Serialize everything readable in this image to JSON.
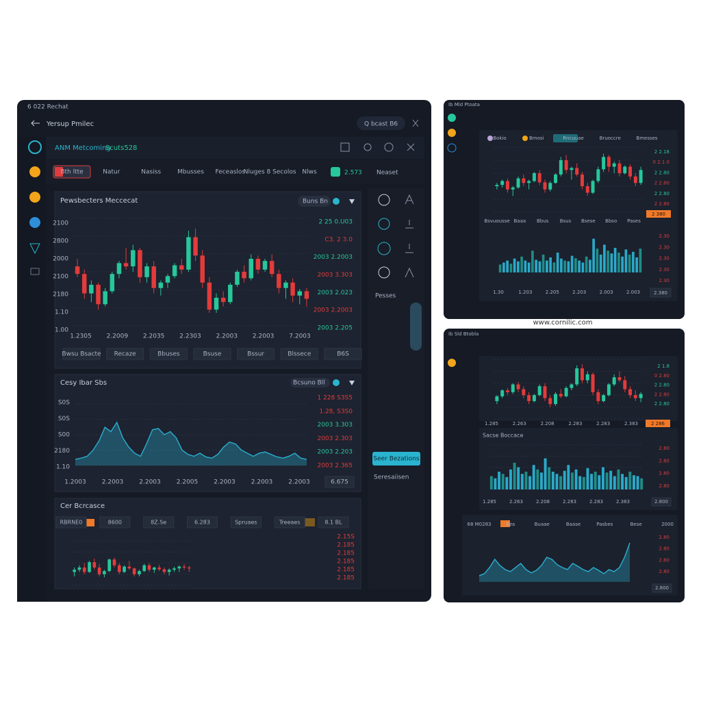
{
  "colors": {
    "up": "#27c79b",
    "down": "#e23b3b",
    "area": "#2aa9c9",
    "accent": "#2ab4cf",
    "orange": "#f07a2a"
  },
  "left": {
    "status": "6 022  Rechat",
    "header": {
      "title": "Yersup Pmilec",
      "search": "Q  bcast  B6"
    },
    "toolbar": {
      "title": "ANM Metcoming",
      "code": "Scuts528"
    },
    "tabs": [
      "Bth ltte",
      "Natur",
      "Nasiss",
      "Mbusses",
      "Feceaslos",
      "Nluges 8 Secolos",
      "Nlws"
    ],
    "tab_price": "2.573",
    "tab_last": "Neaset",
    "main": {
      "title": "Pewsbecters Meccecat",
      "pill": "Buns Bn",
      "y_labels": [
        "2100",
        "2800",
        "2000",
        "2100",
        "2180",
        "1.10",
        "1.00"
      ],
      "x_labels": [
        "1.2305",
        "2.2009",
        "2.2035",
        "2.2303",
        "2.2003",
        "2.2003",
        "7.2003"
      ],
      "side_labels": [
        "2 25 0.U03",
        "C3. 2 3.0",
        "2003  2.2003",
        "2003  3.303",
        "2003  2.023",
        "2003  2.2003",
        "2003  2.205"
      ],
      "buttons": [
        "Bwsu Bsacte",
        "Recaze",
        "Bbuses",
        "Bsuse",
        "Bssur",
        "Blssece",
        "B6S"
      ],
      "ylim": [
        0,
        100
      ],
      "candles": [
        [
          55,
          62,
          45,
          48
        ],
        [
          48,
          52,
          25,
          30
        ],
        [
          30,
          42,
          22,
          38
        ],
        [
          38,
          40,
          15,
          20
        ],
        [
          20,
          35,
          18,
          32
        ],
        [
          32,
          50,
          30,
          48
        ],
        [
          48,
          60,
          44,
          58
        ],
        [
          58,
          72,
          52,
          55
        ],
        [
          55,
          75,
          50,
          70
        ],
        [
          70,
          72,
          40,
          45
        ],
        [
          45,
          58,
          40,
          55
        ],
        [
          55,
          60,
          30,
          35
        ],
        [
          35,
          42,
          28,
          40
        ],
        [
          40,
          48,
          35,
          46
        ],
        [
          46,
          58,
          44,
          56
        ],
        [
          56,
          62,
          48,
          52
        ],
        [
          52,
          88,
          50,
          82
        ],
        [
          82,
          90,
          60,
          65
        ],
        [
          65,
          70,
          35,
          40
        ],
        [
          40,
          45,
          12,
          15
        ],
        [
          15,
          30,
          12,
          26
        ],
        [
          26,
          32,
          18,
          22
        ],
        [
          22,
          40,
          20,
          38
        ],
        [
          38,
          52,
          36,
          50
        ],
        [
          50,
          56,
          40,
          44
        ],
        [
          44,
          66,
          42,
          62
        ],
        [
          62,
          65,
          48,
          52
        ],
        [
          52,
          62,
          50,
          60
        ],
        [
          60,
          66,
          45,
          48
        ],
        [
          48,
          52,
          30,
          35
        ],
        [
          35,
          42,
          25,
          40
        ],
        [
          40,
          44,
          22,
          28
        ],
        [
          28,
          34,
          20,
          32
        ],
        [
          32,
          35,
          18,
          25
        ]
      ]
    },
    "side": {
      "label": "Pesses",
      "button": "Seer Bezations",
      "note": "Seresaiisen"
    },
    "flow": {
      "title": "Cesy Ibar Sbs",
      "pill": "Bcsuno Bll",
      "y_labels": [
        "S0S",
        "S0S",
        "S00",
        "2180",
        "1.10"
      ],
      "x_labels": [
        "1.2003",
        "2.2003",
        "2.2003",
        "2.2005",
        "2.2003",
        "2.2003",
        "2.2003"
      ],
      "side_labels": [
        "1  228  S3S5",
        "1.28,  S3S0",
        "2003  3.303",
        "2003  2.303",
        "2003  2.203",
        "2003  2.365"
      ],
      "button": "6.675",
      "ylim": [
        0,
        100
      ],
      "values": [
        10,
        12,
        15,
        25,
        40,
        62,
        55,
        70,
        45,
        30,
        20,
        15,
        35,
        58,
        60,
        50,
        55,
        45,
        25,
        18,
        15,
        20,
        14,
        12,
        18,
        30,
        38,
        35,
        25,
        20,
        15,
        20,
        22,
        18,
        14,
        12,
        15,
        20,
        12,
        10
      ]
    },
    "orders": {
      "title": "Cer Bcrcasce",
      "tabs": [
        "RBRNE0",
        "8600",
        "8Z.Se",
        "6.283",
        "Spruaes",
        "Treeaes",
        "8.1 BL"
      ],
      "list": [
        "2.15S",
        "2.185",
        "2.185",
        "2.185",
        "2.185",
        "2.185"
      ],
      "ylim": [
        0,
        100
      ],
      "candles": [
        [
          30,
          40,
          20,
          35
        ],
        [
          35,
          45,
          30,
          40
        ],
        [
          40,
          50,
          25,
          30
        ],
        [
          30,
          55,
          28,
          52
        ],
        [
          52,
          60,
          35,
          40
        ],
        [
          40,
          48,
          20,
          25
        ],
        [
          25,
          35,
          18,
          32
        ],
        [
          32,
          60,
          30,
          58
        ],
        [
          58,
          62,
          40,
          45
        ],
        [
          45,
          50,
          25,
          30
        ],
        [
          30,
          45,
          28,
          42
        ],
        [
          42,
          55,
          35,
          38
        ],
        [
          38,
          40,
          20,
          25
        ],
        [
          25,
          35,
          20,
          32
        ],
        [
          32,
          48,
          30,
          45
        ],
        [
          45,
          50,
          30,
          35
        ],
        [
          35,
          42,
          28,
          40
        ],
        [
          40,
          46,
          32,
          36
        ],
        [
          36,
          40,
          25,
          30
        ],
        [
          30,
          38,
          22,
          35
        ],
        [
          35,
          42,
          30,
          38
        ],
        [
          38,
          45,
          30,
          42
        ],
        [
          42,
          48,
          35,
          40
        ],
        [
          40,
          44,
          30,
          38
        ]
      ]
    }
  },
  "right_top": {
    "status": "Ib Mld Ptoata",
    "pills": [
      "Bokio",
      "Bmosi",
      "Rncuuae",
      "Bruoccre",
      "Bmesses"
    ],
    "side_labels": [
      "2 2.18",
      "0 2.1 0",
      "2 2.80",
      "2 2.80",
      "2 2.80",
      "2 2.80"
    ],
    "tabs": [
      "Bsvuousse",
      "Baaa",
      "Bbus",
      "Bsus",
      "Bsese",
      "Bbso",
      "Pases"
    ],
    "tab_price": "2 380",
    "vol_labels": [
      "2.30",
      "2.30",
      "2.30",
      "2.30",
      "2.30"
    ],
    "x_labels": [
      "1.30",
      "1.203",
      "2.205",
      "2.203",
      "2.003",
      "2.003"
    ],
    "button": "2.380",
    "ylim": [
      0,
      100
    ],
    "vlim": [
      0,
      100
    ],
    "candles": [
      [
        40,
        45,
        35,
        42
      ],
      [
        42,
        50,
        38,
        48
      ],
      [
        48,
        52,
        30,
        35
      ],
      [
        35,
        40,
        25,
        38
      ],
      [
        38,
        55,
        36,
        52
      ],
      [
        52,
        58,
        40,
        45
      ],
      [
        45,
        50,
        35,
        48
      ],
      [
        48,
        62,
        46,
        60
      ],
      [
        60,
        65,
        42,
        46
      ],
      [
        46,
        50,
        30,
        35
      ],
      [
        35,
        48,
        32,
        45
      ],
      [
        45,
        60,
        44,
        58
      ],
      [
        58,
        85,
        55,
        80
      ],
      [
        80,
        88,
        60,
        65
      ],
      [
        65,
        70,
        50,
        68
      ],
      [
        68,
        75,
        55,
        58
      ],
      [
        58,
        62,
        35,
        40
      ],
      [
        40,
        45,
        25,
        30
      ],
      [
        30,
        50,
        28,
        48
      ],
      [
        48,
        70,
        45,
        66
      ],
      [
        66,
        90,
        62,
        85
      ],
      [
        85,
        88,
        62,
        70
      ],
      [
        70,
        78,
        60,
        75
      ],
      [
        75,
        80,
        55,
        60
      ],
      [
        60,
        72,
        58,
        70
      ],
      [
        70,
        74,
        50,
        55
      ],
      [
        55,
        60,
        40,
        45
      ],
      [
        45,
        70,
        42,
        65
      ]
    ],
    "volume": [
      20,
      25,
      30,
      22,
      35,
      28,
      40,
      30,
      25,
      55,
      32,
      28,
      45,
      30,
      38,
      25,
      50,
      35,
      30,
      28,
      42,
      36,
      30,
      25,
      40,
      32,
      85,
      60,
      45,
      70,
      55,
      48,
      62,
      50,
      40,
      58,
      45,
      52,
      38,
      60
    ]
  },
  "caption": "www.cornilic.com",
  "right_bottom": {
    "status": "Ib Sld Btobla",
    "side_labels": [
      "2 1.8",
      "0 2.80",
      "2 2.80",
      "2 2.80",
      "2 2.80"
    ],
    "x_labels": [
      "1.285",
      "2.263",
      "2.208",
      "2.283",
      "2.283",
      "2.383"
    ],
    "price": "2 286",
    "vol_title": "Sacse Boccace",
    "vol_labels": [
      "2.80",
      "2.80",
      "2.80",
      "2.80"
    ],
    "vol_x_labels": [
      "1.285",
      "2.263",
      "2.208",
      "2.283",
      "2.283",
      "2.383"
    ],
    "vol_button": "2.800",
    "tabs": [
      "68 M0283",
      "Bza",
      "Buaae",
      "Baase",
      "Pasbes",
      "Bese",
      "2000"
    ],
    "area_labels": [
      "2.80",
      "2.80",
      "2.80",
      "2.80"
    ],
    "area_button": "2.800",
    "ylim": [
      0,
      100
    ],
    "vlim": [
      0,
      100
    ],
    "alim": [
      0,
      100
    ],
    "candles": [
      [
        30,
        40,
        25,
        38
      ],
      [
        38,
        50,
        35,
        48
      ],
      [
        48,
        52,
        40,
        45
      ],
      [
        45,
        60,
        42,
        58
      ],
      [
        58,
        62,
        45,
        50
      ],
      [
        50,
        55,
        35,
        40
      ],
      [
        40,
        45,
        25,
        30
      ],
      [
        30,
        42,
        28,
        40
      ],
      [
        40,
        58,
        38,
        55
      ],
      [
        55,
        60,
        30,
        35
      ],
      [
        35,
        40,
        20,
        25
      ],
      [
        25,
        45,
        22,
        42
      ],
      [
        42,
        50,
        35,
        38
      ],
      [
        38,
        55,
        36,
        52
      ],
      [
        52,
        60,
        48,
        58
      ],
      [
        58,
        90,
        55,
        85
      ],
      [
        85,
        92,
        60,
        65
      ],
      [
        65,
        80,
        60,
        75
      ],
      [
        75,
        78,
        40,
        45
      ],
      [
        45,
        50,
        25,
        30
      ],
      [
        30,
        42,
        28,
        40
      ],
      [
        40,
        60,
        38,
        58
      ],
      [
        58,
        75,
        55,
        70
      ],
      [
        70,
        80,
        62,
        65
      ],
      [
        65,
        72,
        45,
        50
      ],
      [
        50,
        55,
        35,
        40
      ],
      [
        40,
        48,
        30,
        35
      ],
      [
        35,
        45,
        28,
        42
      ]
    ],
    "volume": [
      30,
      25,
      40,
      35,
      28,
      45,
      60,
      50,
      35,
      40,
      30,
      55,
      45,
      38,
      70,
      50,
      40,
      35,
      30,
      42,
      55,
      38,
      45,
      30,
      28,
      48,
      35,
      40,
      32,
      50,
      38,
      42,
      30,
      45,
      35,
      28,
      40,
      32,
      30,
      25
    ],
    "area": [
      15,
      20,
      35,
      55,
      40,
      30,
      25,
      35,
      45,
      30,
      22,
      28,
      40,
      60,
      55,
      42,
      35,
      30,
      45,
      38,
      30,
      25,
      35,
      28,
      20,
      30,
      25,
      35,
      60,
      95
    ]
  }
}
